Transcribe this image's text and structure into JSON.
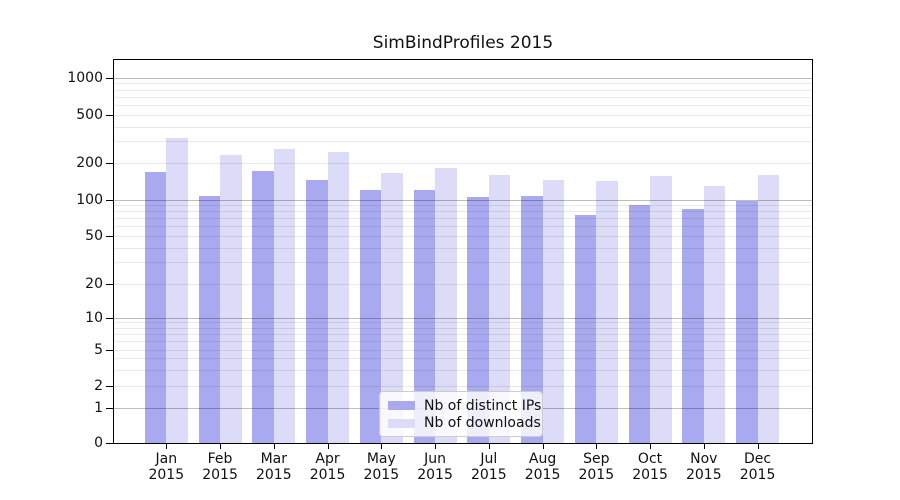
{
  "title": "SimBindProfiles 2015",
  "chart_data": {
    "type": "bar",
    "title": "SimBindProfiles 2015",
    "categories": [
      "Jan",
      "Feb",
      "Mar",
      "Apr",
      "May",
      "Jun",
      "Jul",
      "Aug",
      "Sep",
      "Oct",
      "Nov",
      "Dec"
    ],
    "category_year": "2015",
    "series": [
      {
        "name": "Nb of distinct IPs",
        "color": "#a9a9ef",
        "values": [
          166,
          107,
          171,
          144,
          119,
          120,
          104,
          106,
          75,
          90,
          84,
          97
        ]
      },
      {
        "name": "Nb of downloads",
        "color": "#dcdcf8",
        "values": [
          319,
          230,
          262,
          247,
          164,
          181,
          159,
          144,
          142,
          155,
          128,
          159
        ]
      }
    ],
    "yscale": "symlog",
    "yticks": [
      1000,
      500,
      200,
      100,
      50,
      20,
      10,
      5,
      2,
      1,
      0
    ],
    "ylim": [
      0,
      1400
    ],
    "grid": true,
    "legend_position": "lower-center",
    "xlabel": "",
    "ylabel": ""
  }
}
